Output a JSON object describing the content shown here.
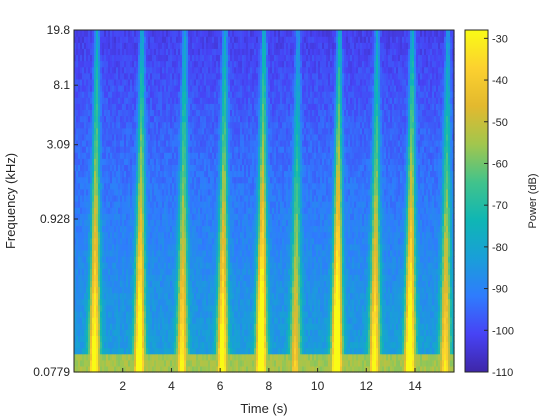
{
  "chart_data": {
    "type": "heatmap",
    "title": "",
    "xlabel": "Time (s)",
    "ylabel": "Frequency (kHz)",
    "xlim": [
      0,
      15.6
    ],
    "y_scale": "log",
    "ylim_khz": [
      0.0779,
      19.8
    ],
    "x_ticks": [
      2,
      4,
      6,
      8,
      10,
      12,
      14
    ],
    "y_ticks": [
      {
        "value": 0.0779,
        "label": "0.0779"
      },
      {
        "value": 0.928,
        "label": "0.928"
      },
      {
        "value": 3.09,
        "label": "3.09"
      },
      {
        "value": 8.1,
        "label": "8.1"
      },
      {
        "value": 19.8,
        "label": "19.8"
      }
    ],
    "colorbar": {
      "label": "Power (dB)",
      "range": [
        -110,
        -28
      ],
      "ticks": [
        -30,
        -40,
        -50,
        -60,
        -70,
        -80,
        -90,
        -100,
        -110
      ],
      "colormap": [
        "#3e26a8",
        "#4743f5",
        "#2f7cfd",
        "#199fd8",
        "#0fb6b4",
        "#42c38b",
        "#a2c64d",
        "#e3b92e",
        "#fcd12f",
        "#f9fb15"
      ]
    },
    "grid": false,
    "background_db": -100,
    "low_band": {
      "f_max_khz": 0.104,
      "level_db": -55
    },
    "events": [
      {
        "t": 0.9,
        "strength": 0.85
      },
      {
        "t": 2.75,
        "strength": 0.9
      },
      {
        "t": 4.5,
        "strength": 0.75
      },
      {
        "t": 6.15,
        "strength": 0.85
      },
      {
        "t": 7.75,
        "strength": 1.0
      },
      {
        "t": 9.15,
        "strength": 0.6
      },
      {
        "t": 10.85,
        "strength": 1.0
      },
      {
        "t": 12.4,
        "strength": 0.8
      },
      {
        "t": 13.85,
        "strength": 0.95
      },
      {
        "t": 15.3,
        "strength": 0.7
      }
    ]
  }
}
